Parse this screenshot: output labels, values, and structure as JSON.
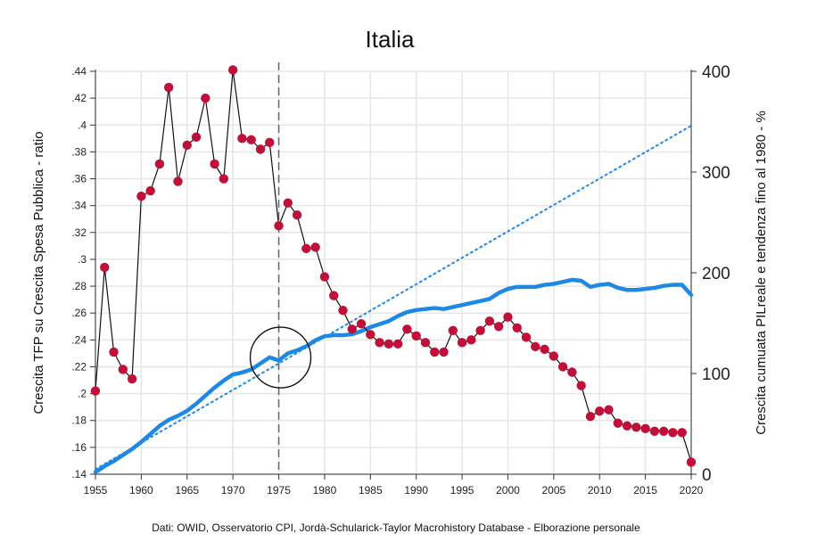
{
  "chart_data": {
    "type": "line",
    "title": "Italia",
    "ylabel": "Crescita TFP su Crescita Spesa Pubblica - ratio",
    "y2label": "Crescita cumuata PILreale e tendenza fino al 1980  - %",
    "note": "Dati: OWID, Osservatorio CPI, Jordà-Schularick-Taylor Macrohistory Database - Elborazione personale",
    "xlim": [
      1955,
      2020
    ],
    "ylim": [
      0.14,
      0.44
    ],
    "y2lim": [
      0,
      400
    ],
    "grid": true,
    "x_ticks": [
      "1955",
      "1960",
      "1965",
      "1970",
      "1975",
      "1980",
      "1985",
      "1990",
      "1995",
      "2000",
      "2005",
      "2010",
      "2015",
      "2020"
    ],
    "y_ticks": [
      ".14",
      ".16",
      ".18",
      ".2",
      ".22",
      ".24",
      ".26",
      ".28",
      ".3",
      ".32",
      ".34",
      ".36",
      ".38",
      ".4",
      ".42",
      ".44"
    ],
    "y2_ticks": [
      "0",
      "100",
      "200",
      "300",
      "400"
    ],
    "reference_line_x": 1975,
    "highlight_circle": {
      "x": 1975,
      "y2": 115
    },
    "colors": {
      "ratio_line": "#111111",
      "ratio_marker": "#c0103a",
      "gdp_line": "#1e88e5",
      "trend_line": "#1e88e5",
      "grid": "#e6e6e6",
      "reference_line": "#666666"
    },
    "series": [
      {
        "axis": "left",
        "style": "line-markers",
        "x": [
          1955,
          1956,
          1957,
          1958,
          1959,
          1960,
          1961,
          1962,
          1963,
          1964,
          1965,
          1966,
          1967,
          1968,
          1969,
          1970,
          1971,
          1972,
          1973,
          1974,
          1975,
          1976,
          1977,
          1978,
          1979,
          1980,
          1981,
          1982,
          1983,
          1984,
          1985,
          1986,
          1987,
          1988,
          1989,
          1990,
          1991,
          1992,
          1993,
          1994,
          1995,
          1996,
          1997,
          1998,
          1999,
          2000,
          2001,
          2002,
          2003,
          2004,
          2005,
          2006,
          2007,
          2008,
          2009,
          2010,
          2011,
          2012,
          2013,
          2014,
          2015,
          2016,
          2017,
          2018,
          2019,
          2020
        ],
        "values": [
          0.202,
          0.294,
          0.231,
          0.218,
          0.211,
          0.347,
          0.351,
          0.371,
          0.428,
          0.358,
          0.385,
          0.391,
          0.42,
          0.371,
          0.36,
          0.441,
          0.39,
          0.389,
          0.382,
          0.387,
          0.325,
          0.342,
          0.333,
          0.308,
          0.309,
          0.287,
          0.273,
          0.262,
          0.248,
          0.252,
          0.244,
          0.238,
          0.237,
          0.237,
          0.248,
          0.243,
          0.238,
          0.231,
          0.231,
          0.247,
          0.238,
          0.24,
          0.247,
          0.254,
          0.25,
          0.257,
          0.249,
          0.242,
          0.235,
          0.233,
          0.228,
          0.22,
          0.216,
          0.206,
          0.183,
          0.187,
          0.188,
          0.178,
          0.176,
          0.175,
          0.174,
          0.172,
          0.172,
          0.171,
          0.171,
          0.149
        ]
      },
      {
        "axis": "right",
        "style": "solid-thick",
        "x": [
          1955,
          1956,
          1957,
          1958,
          1959,
          1960,
          1961,
          1962,
          1963,
          1964,
          1965,
          1966,
          1967,
          1968,
          1969,
          1970,
          1971,
          1972,
          1973,
          1974,
          1975,
          1976,
          1977,
          1978,
          1979,
          1980,
          1981,
          1982,
          1983,
          1984,
          1985,
          1986,
          1987,
          1988,
          1989,
          1990,
          1991,
          1992,
          1993,
          1994,
          1995,
          1996,
          1997,
          1998,
          1999,
          2000,
          2001,
          2002,
          2003,
          2004,
          2005,
          2006,
          2007,
          2008,
          2009,
          2010,
          2011,
          2012,
          2013,
          2014,
          2015,
          2016,
          2017,
          2018,
          2019,
          2020
        ],
        "values": [
          2,
          8,
          13,
          19,
          25,
          32,
          40,
          48,
          54,
          58,
          63,
          70,
          78,
          86,
          93,
          99,
          101,
          104,
          110,
          116,
          113,
          120,
          123,
          127,
          133,
          137,
          138,
          138,
          139,
          142,
          146,
          149,
          152,
          157,
          161,
          163,
          164,
          165,
          164,
          166,
          168,
          170,
          172,
          174,
          180,
          184,
          186,
          186,
          186,
          188,
          189,
          191,
          193,
          192,
          186,
          188,
          189,
          185,
          183,
          183,
          184,
          185,
          187,
          188,
          188,
          178
        ]
      },
      {
        "axis": "right",
        "style": "dotted",
        "x": [
          1955,
          2020
        ],
        "values": [
          5,
          346
        ]
      }
    ]
  }
}
